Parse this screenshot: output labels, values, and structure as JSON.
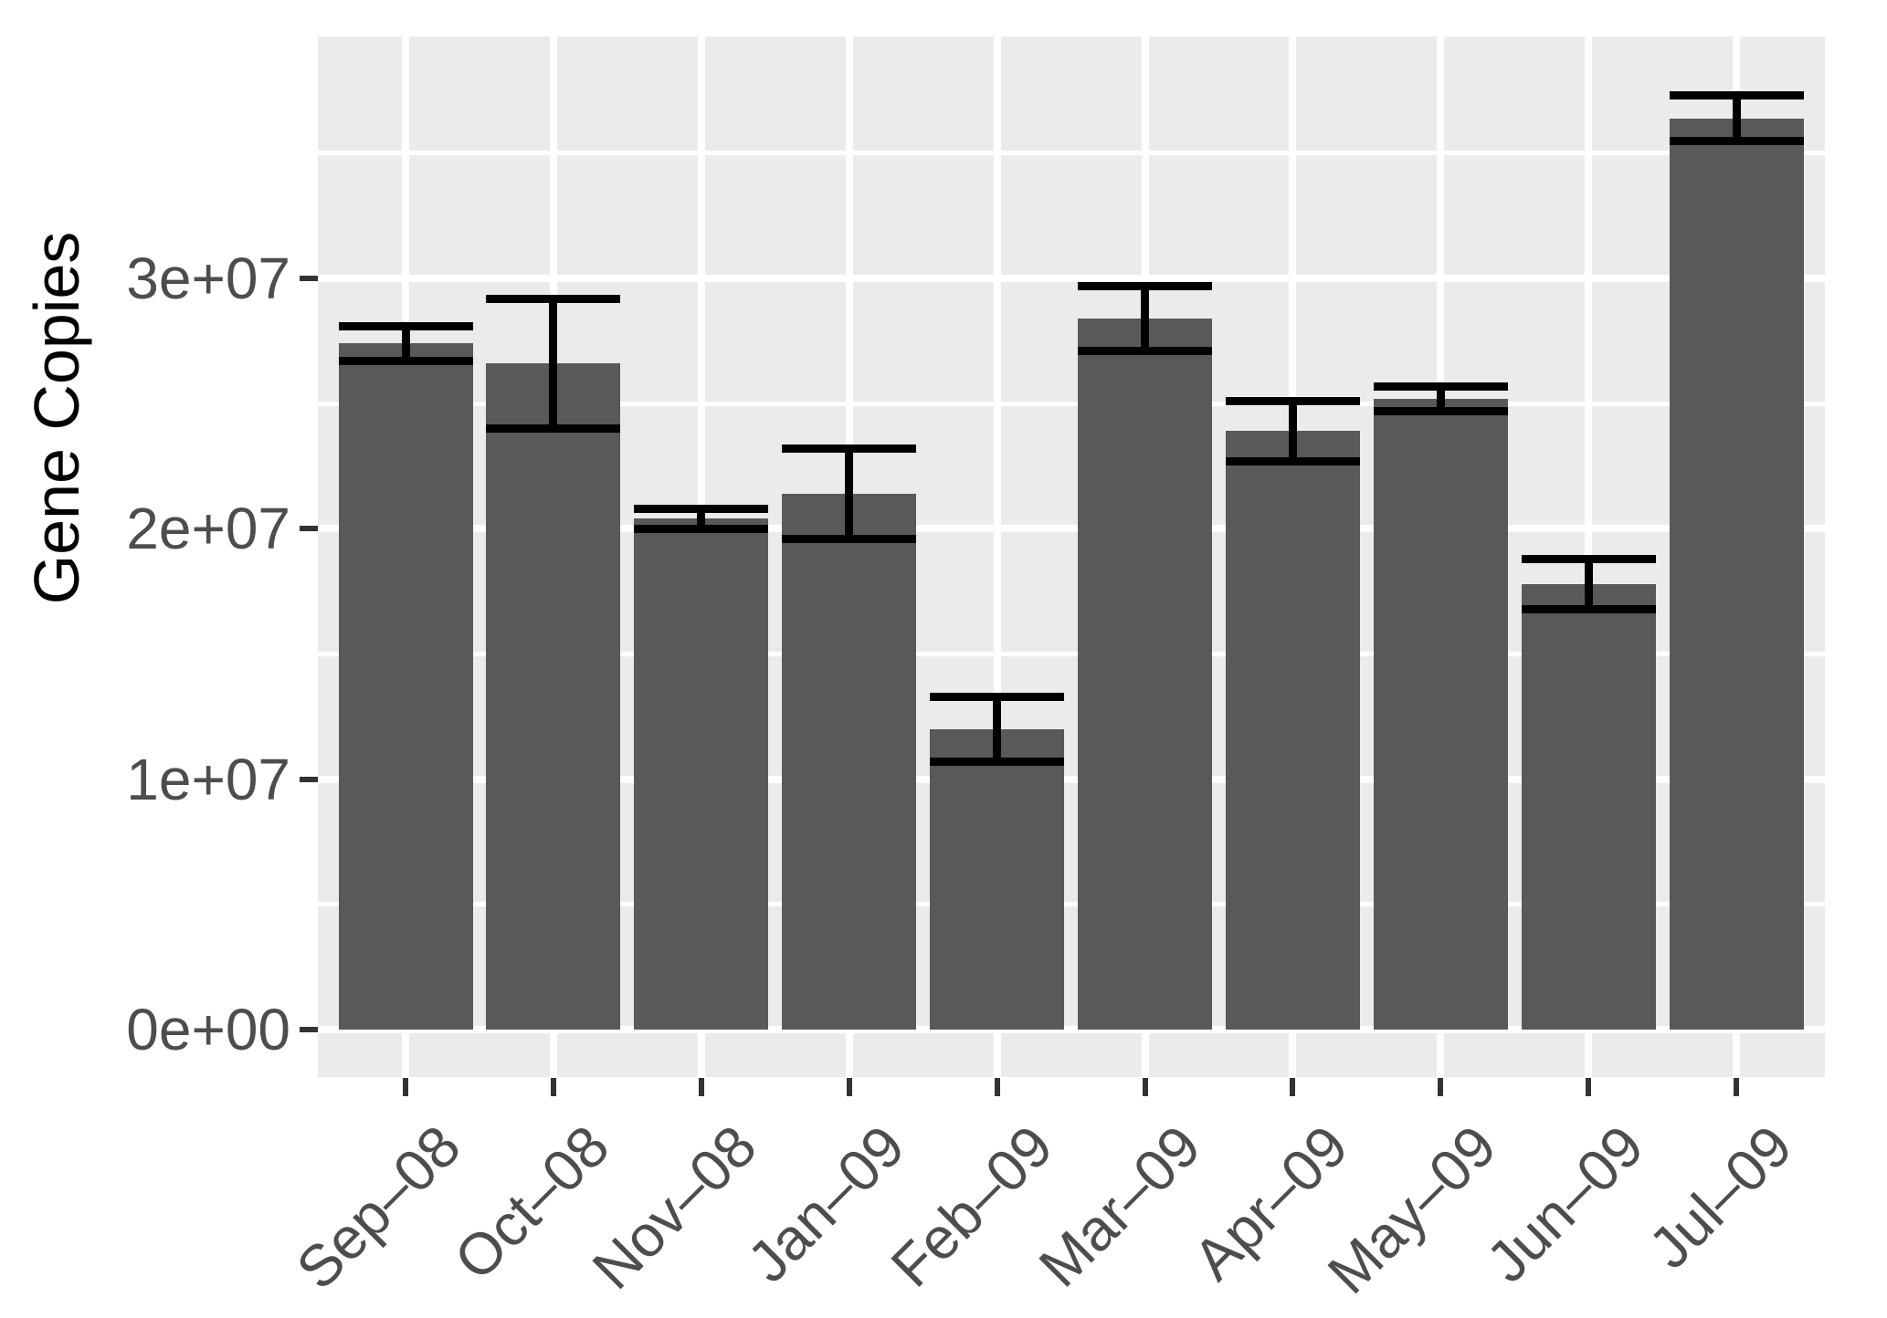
{
  "chart_data": {
    "type": "bar",
    "title": "",
    "xlabel": "",
    "ylabel": "Gene Copies",
    "categories": [
      "Sep–08",
      "Oct–08",
      "Nov–08",
      "Jan–09",
      "Feb–09",
      "Mar–09",
      "Apr–09",
      "May–09",
      "Jun–09",
      "Jul–09"
    ],
    "series": [
      {
        "name": "Gene Copies",
        "values": [
          27400000,
          26600000,
          20400000,
          21400000,
          12000000,
          28400000,
          23900000,
          25200000,
          17800000,
          36400000
        ],
        "errors": [
          700000,
          2600000,
          400000,
          1800000,
          1300000,
          1300000,
          1200000,
          500000,
          1000000,
          900000
        ]
      }
    ],
    "y_ticks": [
      {
        "value": 0,
        "label": "0e+00"
      },
      {
        "value": 10000000,
        "label": "1e+07"
      },
      {
        "value": 20000000,
        "label": "2e+07"
      },
      {
        "value": 30000000,
        "label": "3e+07"
      }
    ],
    "minor_gridline_values": [
      5000000,
      15000000,
      25000000,
      35000000
    ],
    "ylim": [
      -1900000,
      39700000
    ],
    "grid": true,
    "legend_position": "none",
    "colors": {
      "bar_fill": "#595959",
      "panel_background": "#EBEBEB",
      "gridline": "#FFFFFF",
      "error_bar": "#000000",
      "axis_text": "#4D4D4D",
      "axis_title": "#000000",
      "tick_mark": "#333333"
    }
  }
}
